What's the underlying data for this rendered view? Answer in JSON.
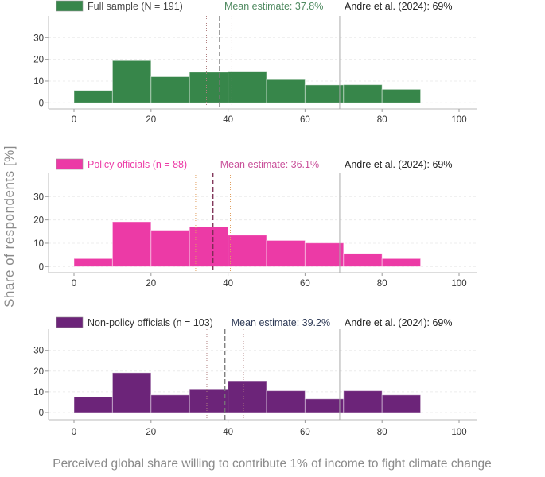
{
  "chart_data": {
    "ylabel": "Share of respondents [%]",
    "xlabel": "Perceived global share willing to contribute 1% of income to fight climate change",
    "panels": [
      {
        "type": "bar",
        "legend": "Full sample (N = 191)",
        "color": "#37864a",
        "mean_label": "Mean estimate: 37.8%",
        "mean": 37.8,
        "ci": [
          34.4,
          41.0
        ],
        "mean_color": "#4f8a60",
        "reference_label": "Andre et al. (2024): 69%",
        "reference": 69,
        "bin_edges": [
          0,
          10,
          20,
          30,
          40,
          50,
          60,
          70,
          80,
          90
        ],
        "values": [
          5.7,
          19.4,
          12.0,
          14.1,
          14.5,
          11.0,
          8.2,
          8.3,
          6.2
        ]
      },
      {
        "type": "bar",
        "legend": "Policy officials (n = 88)",
        "color": "#ec3aa6",
        "mean_label": "Mean estimate: 36.1%",
        "mean": 36.1,
        "ci": [
          31.6,
          40.6
        ],
        "mean_color": "#c9509a",
        "reference_label": "Andre et al. (2024): 69%",
        "reference": 69,
        "bin_edges": [
          0,
          10,
          20,
          30,
          40,
          50,
          60,
          70,
          80,
          90
        ],
        "values": [
          3.4,
          19.2,
          15.6,
          17.0,
          13.5,
          11.2,
          10.1,
          5.6,
          3.4
        ]
      },
      {
        "type": "bar",
        "legend": "Non-policy officials (n = 103)",
        "color": "#6c2479",
        "mean_label": "Mean estimate: 39.2%",
        "mean": 39.2,
        "ci": [
          34.5,
          44.0
        ],
        "mean_color": "#2f3b57",
        "reference_label": "Andre et al. (2024): 69%",
        "reference": 69,
        "bin_edges": [
          0,
          10,
          20,
          30,
          40,
          50,
          60,
          70,
          80,
          90
        ],
        "values": [
          7.6,
          19.2,
          8.5,
          11.4,
          15.3,
          10.5,
          6.6,
          10.5,
          8.5
        ]
      }
    ],
    "xlim": [
      -6,
      104
    ],
    "xticks": [
      0,
      20,
      40,
      60,
      80,
      100
    ],
    "yticks": [
      0,
      10,
      20,
      30
    ],
    "grid": true
  }
}
